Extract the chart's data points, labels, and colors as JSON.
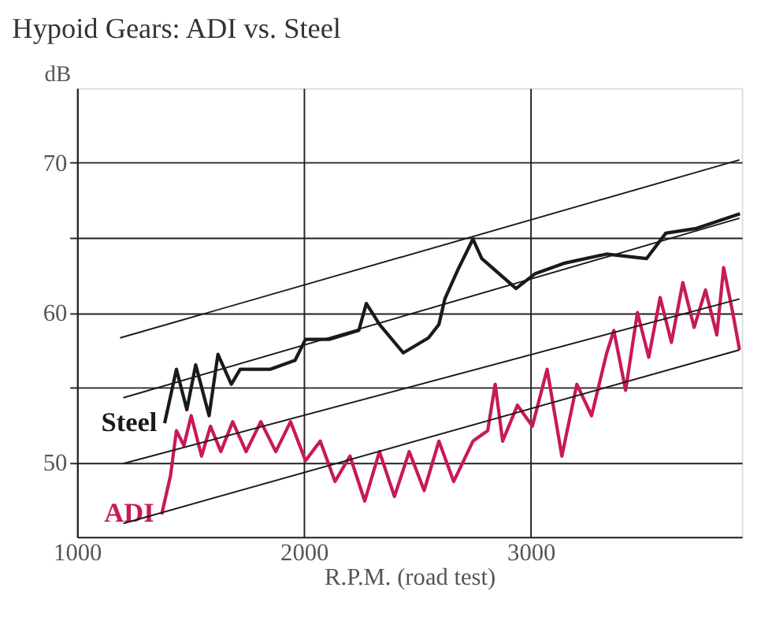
{
  "chart_data": {
    "type": "line",
    "title": "Hypoid Gears: ADI vs. Steel",
    "xlabel": "R.P.M. (road test)",
    "ylabel": "dB",
    "xlim": [
      1000,
      3930
    ],
    "ylim": [
      45,
      75
    ],
    "xticks": [
      1000,
      2000,
      3000
    ],
    "yticks": [
      50,
      {
        "value": 55,
        "label": null
      },
      60,
      {
        "value": 65,
        "label": null
      },
      70
    ],
    "grid": true,
    "marker": "none",
    "line_style": "solid",
    "series": [
      {
        "name": "Steel",
        "color": "#1a1a1a",
        "x": [
          1386,
          1438,
          1484,
          1523,
          1582,
          1621,
          1680,
          1719,
          1850,
          1961,
          2007,
          2111,
          2242,
          2275,
          2333,
          2438,
          2549,
          2595,
          2621,
          2680,
          2745,
          2784,
          2935,
          3020,
          3150,
          3333,
          3510,
          3595,
          3725,
          3922
        ],
        "values": [
          52.6,
          56.2,
          53.5,
          56.5,
          53.1,
          57.2,
          55.2,
          56.2,
          56.2,
          56.8,
          58.2,
          58.2,
          58.8,
          60.6,
          59.2,
          57.3,
          58.3,
          59.2,
          60.9,
          62.9,
          64.9,
          63.6,
          61.6,
          62.6,
          63.3,
          63.9,
          63.6,
          65.3,
          65.6,
          66.6
        ]
      },
      {
        "name": "ADI",
        "color": "#c8195a",
        "x": [
          1373,
          1412,
          1438,
          1471,
          1503,
          1549,
          1588,
          1634,
          1686,
          1745,
          1810,
          1876,
          1941,
          2007,
          2072,
          2137,
          2203,
          2268,
          2333,
          2399,
          2464,
          2530,
          2595,
          2660,
          2745,
          2810,
          2843,
          2876,
          2941,
          3007,
          3072,
          3137,
          3203,
          3268,
          3333,
          3366,
          3418,
          3470,
          3520,
          3570,
          3620,
          3670,
          3720,
          3770,
          3820,
          3850,
          3890,
          3920
        ],
        "values": [
          46.5,
          49.1,
          52.1,
          51.1,
          53.1,
          50.4,
          52.4,
          50.7,
          52.7,
          50.7,
          52.7,
          50.7,
          52.7,
          50.1,
          51.4,
          48.7,
          50.4,
          47.4,
          50.7,
          47.7,
          50.7,
          48.1,
          51.4,
          48.7,
          51.4,
          52.1,
          55.2,
          51.4,
          53.8,
          52.4,
          56.2,
          50.4,
          55.2,
          53.1,
          57.2,
          58.8,
          54.8,
          60.0,
          57.0,
          61.0,
          58.0,
          62.0,
          59.0,
          61.5,
          58.5,
          63.0,
          60.0,
          57.5
        ]
      },
      {
        "type": "line",
        "color": "#1a1a1a",
        "x": [
          1190,
          3920
        ],
        "values": [
          58.3,
          70.2
        ]
      },
      {
        "type": "line",
        "color": "#1a1a1a",
        "x": [
          1204,
          3920
        ],
        "values": [
          54.3,
          66.3
        ]
      },
      {
        "type": "line",
        "color": "#1a1a1a",
        "x": [
          1204,
          3920
        ],
        "values": [
          49.9,
          60.9
        ]
      },
      {
        "type": "line",
        "color": "#1a1a1a",
        "x": [
          1204,
          3920
        ],
        "values": [
          45.9,
          57.5
        ]
      }
    ]
  }
}
